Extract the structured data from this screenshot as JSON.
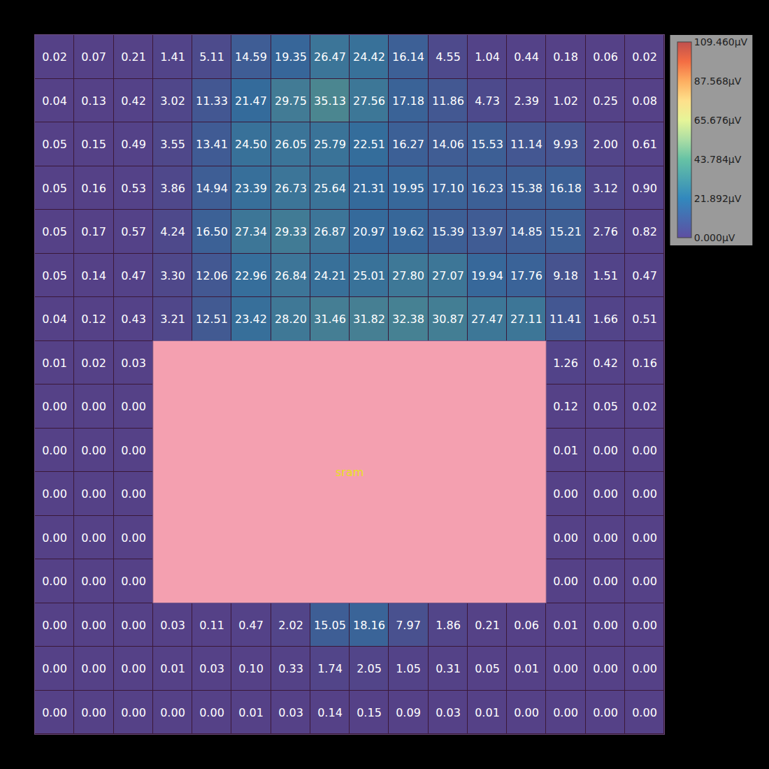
{
  "chart_data": {
    "type": "heatmap",
    "tick_labels": false,
    "data_labels": true,
    "macro_label": "sram",
    "zlim": [
      0,
      109.46
    ],
    "colorbar_ticks": [
      {
        "value": 0,
        "label": "0.000µV"
      },
      {
        "value": 21.892,
        "label": "21.892µV"
      },
      {
        "value": 43.784,
        "label": "43.784µV"
      },
      {
        "value": 65.676,
        "label": "65.676µV"
      },
      {
        "value": 87.568,
        "label": "87.568µV"
      },
      {
        "value": 109.46,
        "label": "109.460µV"
      }
    ],
    "cells": [
      [
        0.02,
        0.07,
        0.21,
        1.41,
        5.11,
        14.59,
        19.35,
        26.47,
        24.42,
        16.14,
        4.55,
        1.04,
        0.44,
        0.18,
        0.06,
        0.02
      ],
      [
        0.04,
        0.13,
        0.42,
        3.02,
        11.33,
        21.47,
        29.75,
        35.13,
        27.56,
        17.18,
        11.86,
        4.73,
        2.39,
        1.02,
        0.25,
        0.08
      ],
      [
        0.05,
        0.15,
        0.49,
        3.55,
        13.41,
        24.5,
        26.05,
        25.79,
        22.51,
        16.27,
        14.06,
        15.53,
        11.14,
        9.93,
        2.0,
        0.61
      ],
      [
        0.05,
        0.16,
        0.53,
        3.86,
        14.94,
        23.39,
        26.73,
        25.64,
        21.31,
        19.95,
        17.1,
        16.23,
        15.38,
        16.18,
        3.12,
        0.9
      ],
      [
        0.05,
        0.17,
        0.57,
        4.24,
        16.5,
        27.34,
        29.33,
        26.87,
        20.97,
        19.62,
        15.39,
        13.97,
        14.85,
        15.21,
        2.76,
        0.82
      ],
      [
        0.05,
        0.14,
        0.47,
        3.3,
        12.06,
        22.96,
        26.84,
        24.21,
        25.01,
        27.8,
        27.07,
        19.94,
        17.76,
        9.18,
        1.51,
        0.47
      ],
      [
        0.04,
        0.12,
        0.43,
        3.21,
        12.51,
        23.42,
        28.2,
        31.46,
        31.82,
        32.38,
        30.87,
        27.47,
        27.11,
        11.41,
        1.66,
        0.51
      ],
      [
        0.01,
        0.02,
        0.03,
        null,
        null,
        null,
        null,
        null,
        null,
        null,
        null,
        null,
        null,
        1.26,
        0.42,
        0.16
      ],
      [
        0.0,
        0.0,
        0.0,
        null,
        null,
        null,
        null,
        null,
        null,
        null,
        null,
        null,
        null,
        0.12,
        0.05,
        0.02
      ],
      [
        0.0,
        0.0,
        0.0,
        null,
        null,
        null,
        null,
        null,
        null,
        null,
        null,
        null,
        null,
        0.01,
        0.0,
        0.0
      ],
      [
        0.0,
        0.0,
        0.0,
        null,
        null,
        null,
        null,
        null,
        null,
        null,
        null,
        null,
        null,
        0.0,
        0.0,
        0.0
      ],
      [
        0.0,
        0.0,
        0.0,
        null,
        null,
        null,
        null,
        null,
        null,
        null,
        null,
        null,
        null,
        0.0,
        0.0,
        0.0
      ],
      [
        0.0,
        0.0,
        0.0,
        null,
        null,
        null,
        null,
        null,
        null,
        null,
        null,
        null,
        null,
        0.0,
        0.0,
        0.0
      ],
      [
        0.0,
        0.0,
        0.0,
        0.03,
        0.11,
        0.47,
        2.02,
        15.05,
        18.16,
        7.97,
        1.86,
        0.21,
        0.06,
        0.01,
        0.0,
        0.0
      ],
      [
        0.0,
        0.0,
        0.0,
        0.01,
        0.03,
        0.1,
        0.33,
        1.74,
        2.05,
        1.05,
        0.31,
        0.05,
        0.01,
        0.0,
        0.0,
        0.0
      ],
      [
        0.0,
        0.0,
        0.0,
        0.0,
        0.0,
        0.01,
        0.03,
        0.14,
        0.15,
        0.09,
        0.03,
        0.01,
        0.0,
        0.0,
        0.0,
        0.0
      ]
    ],
    "cell_labels": [
      [
        "0.02",
        "0.07",
        "0.21",
        "1.41",
        "5.11",
        "14.59",
        "19.35",
        "26.47",
        "24.42",
        "16.14",
        "4.55",
        "1.04",
        "0.44",
        "0.18",
        "0.06",
        "0.02"
      ],
      [
        "0.04",
        "0.13",
        "0.42",
        "3.02",
        "11.33",
        "21.47",
        "29.75",
        "35.13",
        "27.56",
        "17.18",
        "11.86",
        "4.73",
        "2.39",
        "1.02",
        "0.25",
        "0.08"
      ],
      [
        "0.05",
        "0.15",
        "0.49",
        "3.55",
        "13.41",
        "24.50",
        "26.05",
        "25.79",
        "22.51",
        "16.27",
        "14.06",
        "15.53",
        "11.14",
        "9.93",
        "2.00",
        "0.61"
      ],
      [
        "0.05",
        "0.16",
        "0.53",
        "3.86",
        "14.94",
        "23.39",
        "26.73",
        "25.64",
        "21.31",
        "19.95",
        "17.10",
        "16.23",
        "15.38",
        "16.18",
        "3.12",
        "0.90"
      ],
      [
        "0.05",
        "0.17",
        "0.57",
        "4.24",
        "16.50",
        "27.34",
        "29.33",
        "26.87",
        "20.97",
        "19.62",
        "15.39",
        "13.97",
        "14.85",
        "15.21",
        "2.76",
        "0.82"
      ],
      [
        "0.05",
        "0.14",
        "0.47",
        "3.30",
        "12.06",
        "22.96",
        "26.84",
        "24.21",
        "25.01",
        "27.80",
        "27.07",
        "19.94",
        "17.76",
        "9.18",
        "1.51",
        "0.47"
      ],
      [
        "0.04",
        "0.12",
        "0.43",
        "3.21",
        "12.51",
        "23.42",
        "28.20",
        "31.46",
        "31.82",
        "32.38",
        "30.87",
        "27.47",
        "27.11",
        "11.41",
        "1.66",
        "0.51"
      ],
      [
        "0.01",
        "0.02",
        "0.03",
        null,
        null,
        null,
        null,
        null,
        null,
        null,
        null,
        null,
        null,
        "1.26",
        "0.42",
        "0.16"
      ],
      [
        "0.00",
        "0.00",
        "0.00",
        null,
        null,
        null,
        null,
        null,
        null,
        null,
        null,
        null,
        null,
        "0.12",
        "0.05",
        "0.02"
      ],
      [
        "0.00",
        "0.00",
        "0.00",
        null,
        null,
        null,
        null,
        null,
        null,
        null,
        null,
        null,
        null,
        "0.01",
        "0.00",
        "0.00"
      ],
      [
        "0.00",
        "0.00",
        "0.00",
        null,
        null,
        null,
        null,
        null,
        null,
        null,
        null,
        null,
        null,
        "0.00",
        "0.00",
        "0.00"
      ],
      [
        "0.00",
        "0.00",
        "0.00",
        null,
        null,
        null,
        null,
        null,
        null,
        null,
        null,
        null,
        null,
        "0.00",
        "0.00",
        "0.00"
      ],
      [
        "0.00",
        "0.00",
        "0.00",
        null,
        null,
        null,
        null,
        null,
        null,
        null,
        null,
        null,
        null,
        "0.00",
        "0.00",
        "0.00"
      ],
      [
        "0.00",
        "0.00",
        "0.00",
        "0.03",
        "0.11",
        "0.47",
        "2.02",
        "15.05",
        "18.16",
        "7.97",
        "1.86",
        "0.21",
        "0.06",
        "0.01",
        "0.00",
        "0.00"
      ],
      [
        "0.00",
        "0.00",
        "0.00",
        "0.01",
        "0.03",
        "0.10",
        "0.33",
        "1.74",
        "2.05",
        "1.05",
        "0.31",
        "0.05",
        "0.01",
        "0.00",
        "0.00",
        "0.00"
      ],
      [
        "0.00",
        "0.00",
        "0.00",
        "0.00",
        "0.00",
        "0.01",
        "0.03",
        "0.14",
        "0.15",
        "0.09",
        "0.03",
        "0.01",
        "0.00",
        "0.00",
        "0.00",
        "0.00"
      ]
    ]
  }
}
